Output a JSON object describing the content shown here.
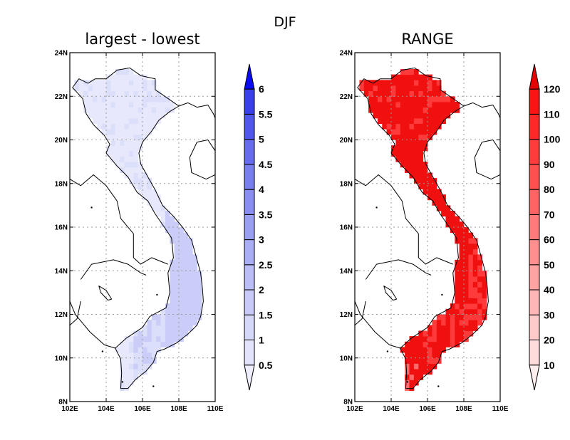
{
  "figure": {
    "title": "DJF",
    "panels": [
      {
        "id": "left",
        "title": "largest - lowest",
        "colorbar": {
          "levels": [
            "0.5",
            "1",
            "1.5",
            "2",
            "2.5",
            "3",
            "3.5",
            "4",
            "4.5",
            "5",
            "5.5",
            "6"
          ],
          "colors": [
            "#eeeefe",
            "#e3e4fc",
            "#d6d8fa",
            "#c8caf8",
            "#babdf6",
            "#aaaef4",
            "#9b9ff2",
            "#8a8ef0",
            "#7a7fee",
            "#676cec",
            "#5157ea",
            "#3a40e8",
            "#0a0af5"
          ]
        },
        "field": {
          "base": "#e7e8fc",
          "mid": "#dcdffa",
          "strong": "#cacdf7"
        }
      },
      {
        "id": "right",
        "title": "RANGE",
        "colorbar": {
          "levels": [
            "10",
            "20",
            "30",
            "40",
            "50",
            "60",
            "70",
            "80",
            "90",
            "100",
            "110",
            "120"
          ],
          "colors": [
            "#ffeeee",
            "#ffdcdc",
            "#ffcaca",
            "#ffb6b6",
            "#ffa2a2",
            "#ff8e8e",
            "#ff7a7a",
            "#ff6464",
            "#ff5050",
            "#ff3c3c",
            "#ff2828",
            "#fa1414",
            "#e60000"
          ]
        },
        "field": {
          "base": "#f01010",
          "mid": "#ff3a3a",
          "strong": "#ff6a6a"
        }
      }
    ],
    "axes": {
      "lon_ticks": [
        {
          "value": 102,
          "label": "102E"
        },
        {
          "value": 104,
          "label": "104E"
        },
        {
          "value": 106,
          "label": "106E"
        },
        {
          "value": 108,
          "label": "108E"
        },
        {
          "value": 110,
          "label": "110E"
        }
      ],
      "lat_ticks": [
        {
          "value": 8,
          "label": "8N"
        },
        {
          "value": 10,
          "label": "10N"
        },
        {
          "value": 12,
          "label": "12N"
        },
        {
          "value": 14,
          "label": "14N"
        },
        {
          "value": 16,
          "label": "16N"
        },
        {
          "value": 18,
          "label": "18N"
        },
        {
          "value": 20,
          "label": "20N"
        },
        {
          "value": 22,
          "label": "22N"
        },
        {
          "value": 24,
          "label": "24N"
        }
      ],
      "lon_range": [
        102,
        110
      ],
      "lat_range": [
        8,
        24
      ]
    }
  }
}
